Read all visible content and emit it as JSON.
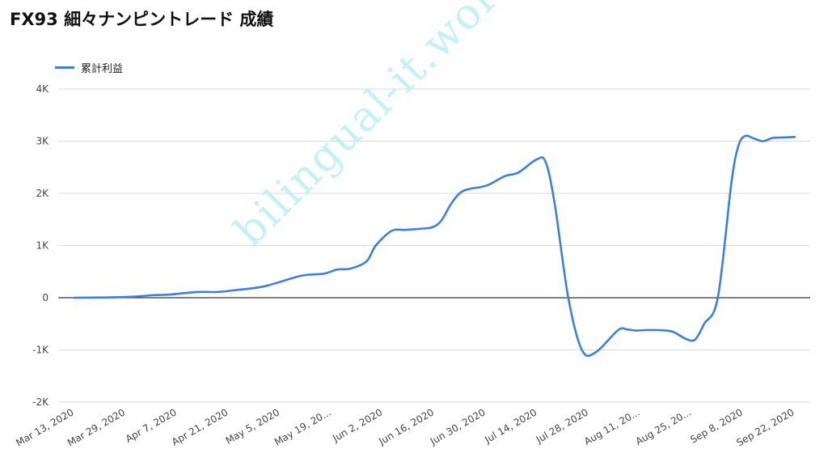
{
  "title": "FX93 細々ナンピントレード 成績",
  "watermark": "bilingual-it.work",
  "chart_data": {
    "type": "line",
    "title": "FX93 細々ナンピントレード 成績",
    "xlabel": "",
    "ylabel": "",
    "ylim": [
      -2000,
      4000
    ],
    "y_ticks": [
      4000,
      3000,
      2000,
      1000,
      0,
      -1000,
      -2000
    ],
    "y_tick_labels": [
      "4K",
      "3K",
      "2K",
      "1K",
      "0",
      "-1K",
      "-2K"
    ],
    "x_tick_labels": [
      "Mar 13, 2020",
      "Mar 29, 2020",
      "Apr 7, 2020",
      "Apr 21, 2020",
      "May 5, 2020",
      "May 19, 20...",
      "Jun 2, 2020",
      "Jun 16, 2020",
      "Jun 30, 2020",
      "Jul 14, 2020",
      "Jul 28, 2020",
      "Aug 11, 20...",
      "Aug 25, 20...",
      "Sep 8, 2020",
      "Sep 22, 2020"
    ],
    "legend_position": "top-left",
    "grid": true,
    "series": [
      {
        "name": "累計利益",
        "color": "#3d7fe0",
        "x": [
          0,
          14,
          26,
          35,
          42,
          54,
          63,
          72,
          84,
          100,
          110,
          116,
          122,
          129,
          133,
          140,
          146,
          152,
          158,
          162,
          166,
          170,
          174,
          182,
          190,
          196,
          204,
          208,
          212,
          218,
          224,
          230,
          240,
          244,
          246,
          248,
          252,
          254,
          258,
          264,
          270,
          274,
          278,
          284,
          290,
          293,
          296,
          300,
          304,
          308,
          312,
          318
        ],
        "values": [
          0,
          5,
          20,
          50,
          60,
          110,
          110,
          150,
          220,
          420,
          460,
          540,
          560,
          700,
          1000,
          1280,
          1300,
          1320,
          1350,
          1480,
          1780,
          2000,
          2080,
          2150,
          2330,
          2400,
          2650,
          2600,
          1800,
          0,
          -1000,
          -1050,
          -620,
          -610,
          -620,
          -630,
          -620,
          -620,
          -620,
          -650,
          -790,
          -800,
          -500,
          0,
          2200,
          2900,
          3100,
          3050,
          3000,
          3060,
          3070,
          3080
        ]
      }
    ]
  }
}
